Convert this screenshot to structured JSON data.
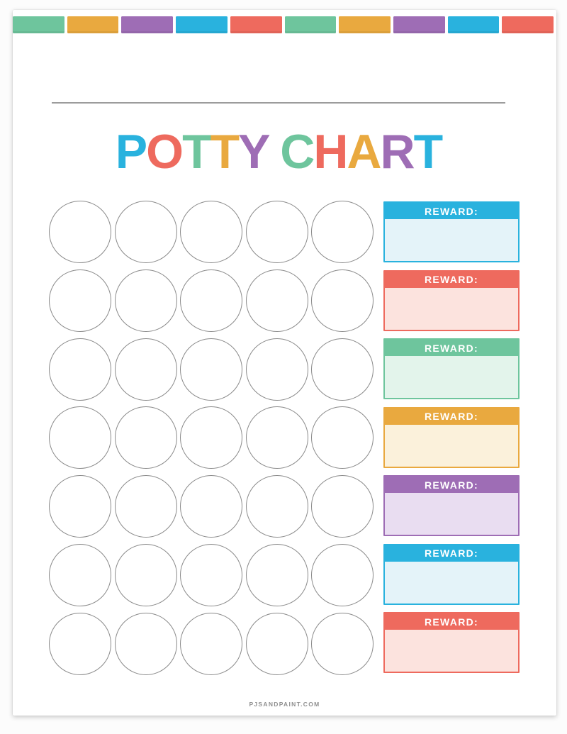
{
  "document": {
    "title_text": "POTTY CHART",
    "title_letters": [
      {
        "char": "P",
        "color": "#29b2de"
      },
      {
        "char": "O",
        "color": "#ee6a5e"
      },
      {
        "char": "T",
        "color": "#6ec59d"
      },
      {
        "char": "T",
        "color": "#e9a93f"
      },
      {
        "char": "Y",
        "color": "#9e6db5"
      },
      {
        "char": " ",
        "color": "#ffffff"
      },
      {
        "char": "C",
        "color": "#6ec59d"
      },
      {
        "char": "H",
        "color": "#ee6a5e"
      },
      {
        "char": "A",
        "color": "#e9a93f"
      },
      {
        "char": "R",
        "color": "#9e6db5"
      },
      {
        "char": "T",
        "color": "#29b2de"
      }
    ],
    "footer_text": "PJSANDPAINT.COM"
  },
  "palette": {
    "blue": "#29b2de",
    "coral": "#ee6a5e",
    "green": "#6ec59d",
    "orange": "#e9a93f",
    "purple": "#9e6db5",
    "circle_outline": "#8a8a8a",
    "divider_gray": "#9c9c9c"
  },
  "banner": {
    "block_colors": [
      "#6ec59d",
      "#e9a93f",
      "#9e6db5",
      "#29b2de",
      "#ee6a5e",
      "#6ec59d",
      "#e9a93f",
      "#9e6db5",
      "#29b2de",
      "#ee6a5e"
    ]
  },
  "sticker_grid": {
    "rows": 7,
    "columns": 5,
    "total_circles": 35
  },
  "rewards": {
    "boxes": [
      {
        "label": "REWARD:",
        "header_color": "#29b2de",
        "body_color": "#e4f3f9"
      },
      {
        "label": "REWARD:",
        "header_color": "#ee6a5e",
        "body_color": "#fce3de"
      },
      {
        "label": "REWARD:",
        "header_color": "#6ec59d",
        "body_color": "#e3f4eb"
      },
      {
        "label": "REWARD:",
        "header_color": "#e9a93f",
        "body_color": "#fbf1db"
      },
      {
        "label": "REWARD:",
        "header_color": "#9e6db5",
        "body_color": "#e9ddf1"
      },
      {
        "label": "REWARD:",
        "header_color": "#29b2de",
        "body_color": "#e4f3f9"
      },
      {
        "label": "REWARD:",
        "header_color": "#ee6a5e",
        "body_color": "#fce3de"
      }
    ]
  }
}
